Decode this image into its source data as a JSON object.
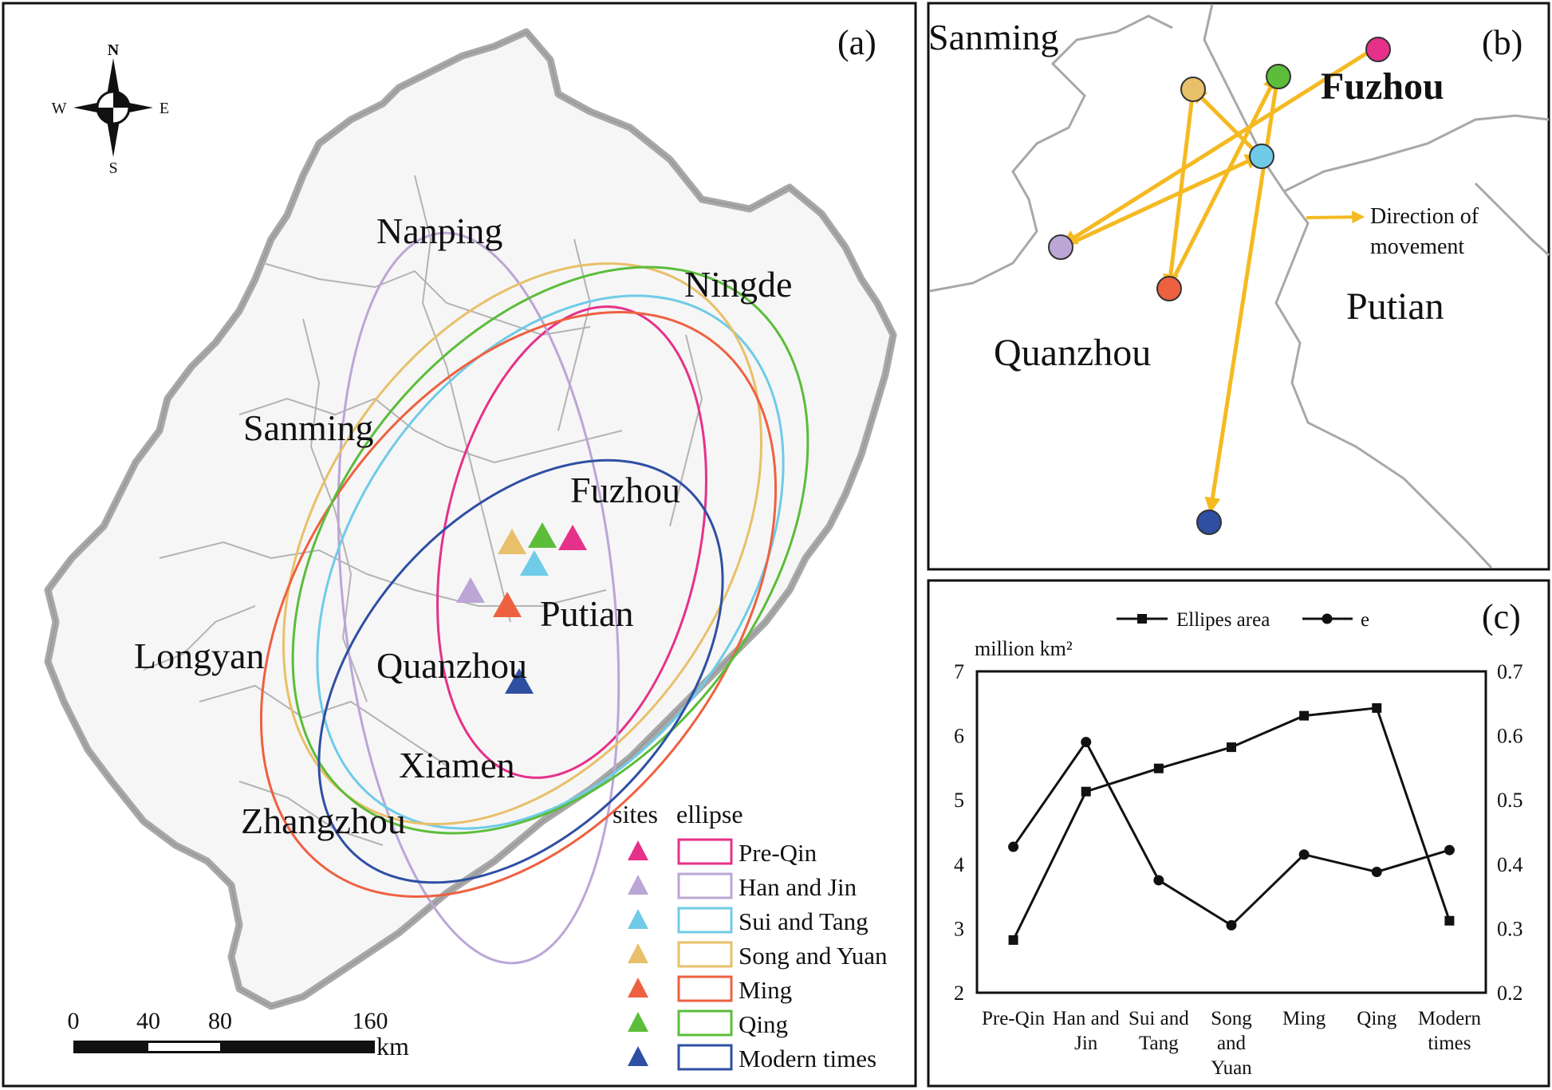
{
  "panels": {
    "a": {
      "label": "(a)"
    },
    "b": {
      "label": "(b)"
    },
    "c": {
      "label": "(c)"
    }
  },
  "compass": {
    "n": "N",
    "s": "S",
    "e": "E",
    "w": "W"
  },
  "map_a": {
    "cities": {
      "nanping": "Nanping",
      "ningde": "Ningde",
      "sanming": "Sanming",
      "fuzhou": "Fuzhou",
      "putian": "Putian",
      "longyan": "Longyan",
      "quanzhou": "Quanzhou",
      "xiamen": "Xiamen",
      "zhangzhou": "Zhangzhou"
    },
    "legend": {
      "sites_header": "sites",
      "ellipse_header": "ellipse",
      "items": [
        {
          "name": "Pre-Qin",
          "color": "#e6318a"
        },
        {
          "name": "Han and Jin",
          "color": "#bba6d6"
        },
        {
          "name": "Sui and Tang",
          "color": "#6fcbe8"
        },
        {
          "name": "Song and Yuan",
          "color": "#e8c06a"
        },
        {
          "name": "Ming",
          "color": "#ee6140"
        },
        {
          "name": "Qing",
          "color": "#5bbd3a"
        },
        {
          "name": "Modern times",
          "color": "#2f4fa3"
        }
      ]
    },
    "scalebar": {
      "ticks": [
        "0",
        "40",
        "80",
        "160"
      ],
      "unit": "km"
    }
  },
  "map_b": {
    "cities": {
      "sanming": "Sanming",
      "fuzhou": "Fuzhou",
      "putian": "Putian",
      "quanzhou": "Quanzhou"
    },
    "arrow_legend_line1": "Direction of",
    "arrow_legend_line2": "movement",
    "arrow_color": "#f5b921"
  },
  "chart_data": {
    "type": "line",
    "categories": [
      "Pre-Qin",
      "Han and Jin",
      "Sui and Tang",
      "Song and Yuan",
      "Ming",
      "Qing",
      "Modern times"
    ],
    "category_lines": [
      [
        "Pre-Qin"
      ],
      [
        "Han and",
        "Jin"
      ],
      [
        "Sui and",
        "Tang"
      ],
      [
        "Song",
        "and",
        "Yuan"
      ],
      [
        "Ming"
      ],
      [
        "Qing"
      ],
      [
        "Modern",
        "times"
      ]
    ],
    "series": [
      {
        "name": "Ellipes area",
        "axis": "left",
        "marker": "square",
        "values": [
          2.82,
          5.13,
          5.49,
          5.82,
          6.31,
          6.43,
          3.12
        ]
      },
      {
        "name": "e",
        "axis": "right",
        "marker": "circle",
        "values": [
          0.427,
          0.59,
          0.375,
          0.305,
          0.415,
          0.388,
          0.422
        ]
      }
    ],
    "ylabel_left": "million km²",
    "yleft_range": [
      2,
      7
    ],
    "yleft_ticks": [
      "2",
      "3",
      "4",
      "5",
      "6",
      "7"
    ],
    "yright_range": [
      0.2,
      0.7
    ],
    "yright_ticks": [
      "0.2",
      "0.3",
      "0.4",
      "0.5",
      "0.6",
      "0.7"
    ],
    "legend_position": "top"
  }
}
